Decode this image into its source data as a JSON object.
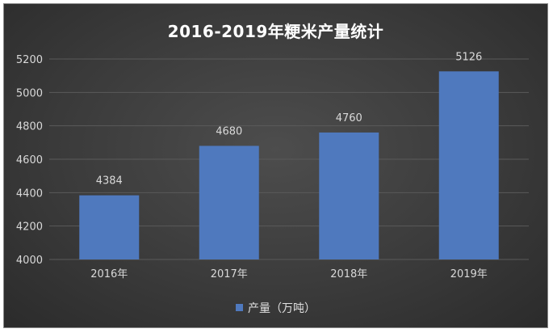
{
  "chart_data": {
    "type": "bar",
    "title": "2016-2019年粳米产量统计",
    "categories": [
      "2016年",
      "2017年",
      "2018年",
      "2019年"
    ],
    "series": [
      {
        "name": "产量（万吨）",
        "values": [
          4384,
          4680,
          4760,
          5126
        ]
      }
    ],
    "ylim": [
      4000,
      5200
    ],
    "yticks": [
      4000,
      4200,
      4400,
      4600,
      4800,
      5000,
      5200
    ],
    "grid": true,
    "legend_position": "bottom",
    "colors": {
      "bar": "#4f79be",
      "background": "#3a3a3a",
      "grid": "#5a5a5a",
      "text": "#d9d9d9"
    }
  }
}
